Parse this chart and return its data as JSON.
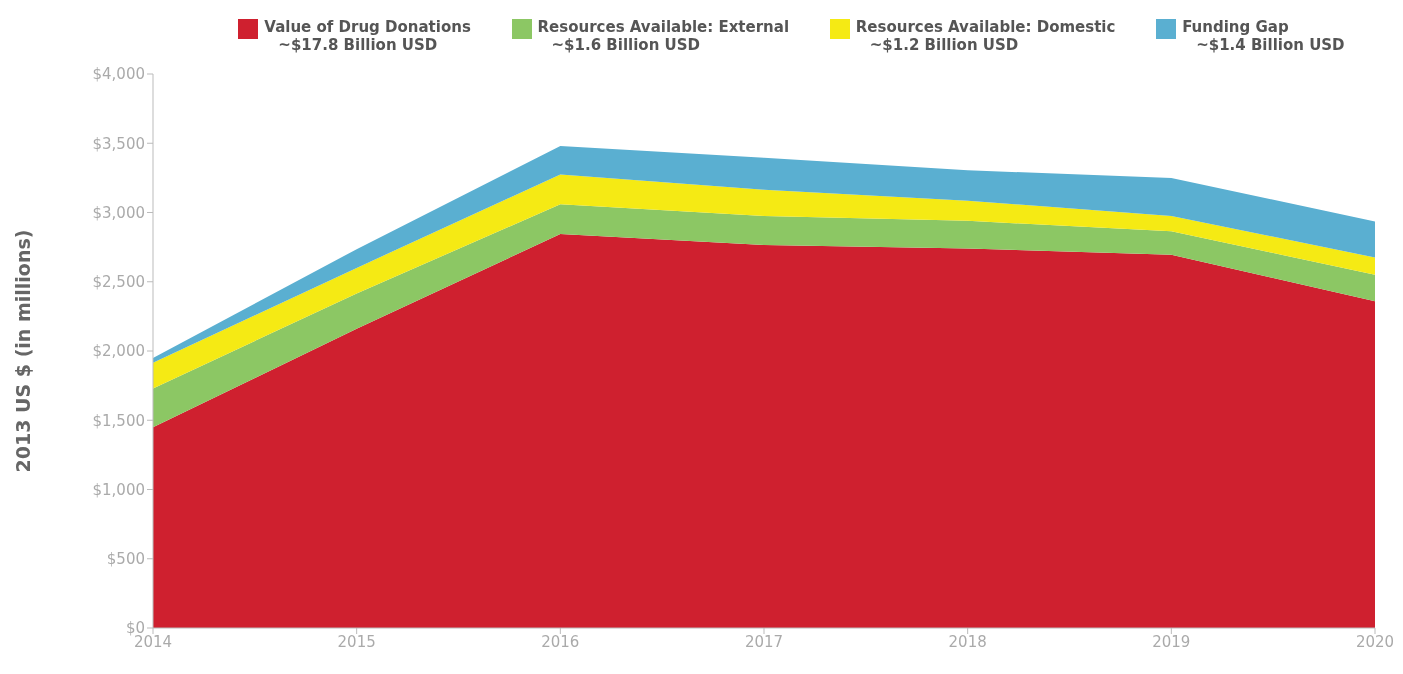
{
  "chart_data": {
    "type": "area",
    "stacked": true,
    "ylabel": "2013 US $ (in millions)",
    "x": [
      2014,
      2015,
      2016,
      2017,
      2018,
      2019,
      2020
    ],
    "xlim": [
      2014,
      2020
    ],
    "xticks": [
      2014,
      2015,
      2016,
      2017,
      2018,
      2019,
      2020
    ],
    "ylim": [
      0,
      4000
    ],
    "yticks": [
      {
        "value": 0,
        "label": "$0"
      },
      {
        "value": 500,
        "label": "$500"
      },
      {
        "value": 1000,
        "label": "$1,000"
      },
      {
        "value": 1500,
        "label": "$1,500"
      },
      {
        "value": 2000,
        "label": "$2,000"
      },
      {
        "value": 2500,
        "label": "$2,500"
      },
      {
        "value": 3000,
        "label": "$3,000"
      },
      {
        "value": 3500,
        "label": "$3,500"
      },
      {
        "value": 4000,
        "label": "$4,000"
      }
    ],
    "grid": false,
    "legend": "top",
    "series": [
      {
        "name": "Value of Drug Donations\n~$17.8 Billion USD",
        "color": "#cf202f",
        "values": [
          1450,
          2160,
          2845,
          2765,
          2740,
          2695,
          2360
        ]
      },
      {
        "name": "Resources Available: External\n~$1.6 Billion USD",
        "color": "#8cc764",
        "values": [
          280,
          255,
          215,
          210,
          200,
          170,
          190
        ]
      },
      {
        "name": "Resources Available: Domestic\n~$1.2 Billion USD",
        "color": "#f5ea14",
        "values": [
          185,
          185,
          215,
          190,
          145,
          110,
          125
        ]
      },
      {
        "name": "Funding Gap\n~$1.4 Billion USD",
        "color": "#5aafd1",
        "values": [
          35,
          135,
          205,
          230,
          220,
          275,
          260
        ]
      }
    ]
  }
}
